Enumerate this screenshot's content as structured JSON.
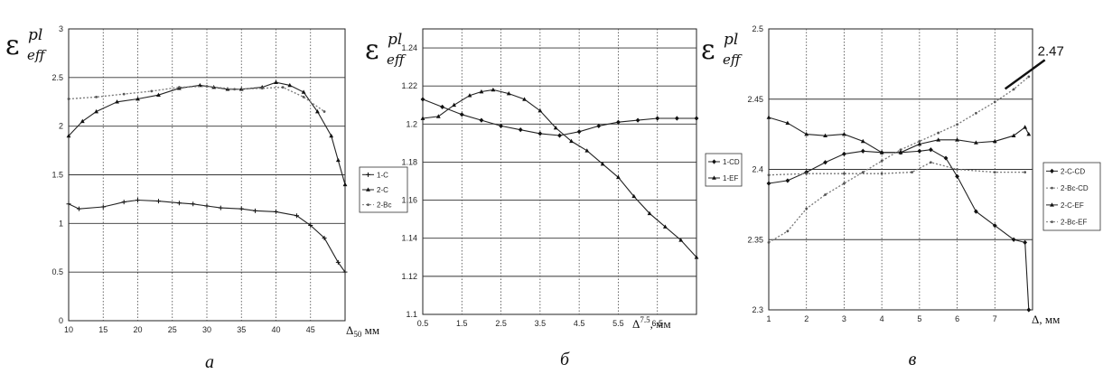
{
  "chart_data": [
    {
      "type": "line",
      "panel_label": "а",
      "ylabel": {
        "base": "ε",
        "sup": "pl",
        "sub": "eff"
      },
      "xlabel": "Δ",
      "xlabel_sub": "50",
      "xlabel_unit": "мм",
      "xlim": [
        10,
        50
      ],
      "ylim": [
        0,
        3
      ],
      "xticks": [
        10,
        15,
        20,
        25,
        30,
        35,
        40,
        45
      ],
      "yticks": [
        0,
        0.5,
        1,
        1.5,
        2,
        2.5,
        3
      ],
      "xtick_labels": [
        "10",
        "15",
        "20",
        "25",
        "30",
        "35",
        "40",
        "45"
      ],
      "ytick_labels": [
        "0",
        "0.5",
        "1",
        "1.5",
        "2",
        "2.5",
        "3"
      ],
      "legend": [
        "1-C",
        "2-C",
        "2-Bc"
      ],
      "legend_position": "right",
      "series": [
        {
          "name": "1-C",
          "marker": "plus",
          "dashed": false,
          "x": [
            10,
            11.5,
            15,
            18,
            20,
            23,
            26,
            28,
            30,
            32,
            35,
            37,
            40,
            43,
            45,
            47,
            49,
            50
          ],
          "y": [
            1.2,
            1.15,
            1.17,
            1.22,
            1.24,
            1.23,
            1.21,
            1.2,
            1.18,
            1.16,
            1.15,
            1.13,
            1.12,
            1.08,
            0.98,
            0.85,
            0.6,
            0.5
          ]
        },
        {
          "name": "2-C",
          "marker": "triangle",
          "dashed": false,
          "x": [
            10,
            12,
            14,
            17,
            20,
            23,
            26,
            29,
            31,
            33,
            35,
            38,
            40,
            42,
            44,
            46,
            48,
            49,
            50
          ],
          "y": [
            1.9,
            2.05,
            2.15,
            2.25,
            2.28,
            2.32,
            2.39,
            2.42,
            2.4,
            2.38,
            2.38,
            2.4,
            2.45,
            2.42,
            2.35,
            2.15,
            1.9,
            1.65,
            1.4
          ]
        },
        {
          "name": "2-Bc",
          "marker": "dot",
          "dashed": true,
          "x": [
            10,
            14,
            18,
            22,
            26,
            30,
            34,
            38,
            41,
            44,
            47
          ],
          "y": [
            2.28,
            2.3,
            2.33,
            2.36,
            2.4,
            2.41,
            2.38,
            2.39,
            2.4,
            2.3,
            2.15
          ]
        }
      ]
    },
    {
      "type": "line",
      "panel_label": "б",
      "ylabel": {
        "base": "ε",
        "sup": "pl",
        "sub": "eff"
      },
      "xlabel": "Δ",
      "xlabel_sup": "7.5",
      "xlabel_unit": ", мм",
      "xlim": [
        0.5,
        7.5
      ],
      "ylim": [
        1.1,
        1.25
      ],
      "xticks": [
        0.5,
        1.5,
        2.5,
        3.5,
        4.5,
        5.5,
        6.5
      ],
      "yticks": [
        1.1,
        1.12,
        1.14,
        1.16,
        1.18,
        1.2,
        1.22,
        1.24
      ],
      "xtick_labels": [
        "0.5",
        "1.5",
        "2.5",
        "3.5",
        "4.5",
        "5.5",
        "6.5"
      ],
      "ytick_labels": [
        "1.1",
        "1.12",
        "1.14",
        "1.16",
        "1.18",
        "1.2",
        "1.22",
        "1.24"
      ],
      "legend": [
        "1-CD",
        "1-EF"
      ],
      "legend_position": "right",
      "series": [
        {
          "name": "1-CD",
          "marker": "diamond",
          "dashed": false,
          "x": [
            0.5,
            1.0,
            1.5,
            2.0,
            2.5,
            3.0,
            3.5,
            4.0,
            4.5,
            5.0,
            5.5,
            6.0,
            6.5,
            7.0,
            7.5
          ],
          "y": [
            1.213,
            1.209,
            1.205,
            1.202,
            1.199,
            1.197,
            1.195,
            1.194,
            1.196,
            1.199,
            1.201,
            1.202,
            1.203,
            1.203,
            1.203
          ]
        },
        {
          "name": "1-EF",
          "marker": "triangle",
          "dashed": false,
          "x": [
            0.5,
            0.9,
            1.3,
            1.7,
            2.0,
            2.3,
            2.7,
            3.1,
            3.5,
            3.9,
            4.3,
            4.7,
            5.1,
            5.5,
            5.9,
            6.3,
            6.7,
            7.1,
            7.5
          ],
          "y": [
            1.203,
            1.204,
            1.21,
            1.215,
            1.217,
            1.218,
            1.216,
            1.213,
            1.207,
            1.198,
            1.191,
            1.186,
            1.179,
            1.172,
            1.162,
            1.153,
            1.146,
            1.139,
            1.13
          ]
        }
      ]
    },
    {
      "type": "line",
      "panel_label": "в",
      "ylabel": {
        "base": "ε",
        "sup": "pl",
        "sub": "eff"
      },
      "xlabel": "Δ",
      "xlabel_unit": ", мм",
      "xlim": [
        1,
        8
      ],
      "ylim": [
        2.3,
        2.5
      ],
      "xticks": [
        1,
        2,
        3,
        4,
        5,
        6,
        7
      ],
      "yticks": [
        2.3,
        2.35,
        2.4,
        2.45,
        2.5
      ],
      "xtick_labels": [
        "1",
        "2",
        "3",
        "4",
        "5",
        "6",
        "7"
      ],
      "ytick_labels": [
        "2.3",
        "2.35",
        "2.4",
        "2.45",
        "2.5"
      ],
      "legend": [
        "2-C-CD",
        "2-Bc-CD",
        "2-C-EF",
        "2-Bc-EF"
      ],
      "legend_position": "right",
      "annotation": {
        "text": "2.47",
        "x": 7.8,
        "y": 2.465
      },
      "series": [
        {
          "name": "2-C-CD",
          "marker": "diamond",
          "dashed": false,
          "x": [
            1,
            1.5,
            2,
            2.5,
            3,
            3.5,
            4,
            4.5,
            5,
            5.3,
            5.7,
            6,
            6.5,
            7,
            7.5,
            7.8,
            7.9
          ],
          "y": [
            2.39,
            2.392,
            2.398,
            2.405,
            2.411,
            2.413,
            2.412,
            2.412,
            2.413,
            2.414,
            2.408,
            2.395,
            2.37,
            2.36,
            2.35,
            2.348,
            2.3
          ]
        },
        {
          "name": "2-Bc-CD",
          "marker": "dot",
          "dashed": true,
          "x": [
            1,
            2,
            3,
            4,
            4.8,
            5.3,
            6,
            7,
            7.8
          ],
          "y": [
            2.396,
            2.397,
            2.397,
            2.397,
            2.398,
            2.405,
            2.4,
            2.398,
            2.398
          ]
        },
        {
          "name": "2-C-EF",
          "marker": "triangle",
          "dashed": false,
          "x": [
            1,
            1.5,
            2,
            2.5,
            3,
            3.5,
            4,
            4.5,
            5,
            5.5,
            6,
            6.5,
            7,
            7.5,
            7.8,
            7.9
          ],
          "y": [
            2.437,
            2.433,
            2.425,
            2.424,
            2.425,
            2.42,
            2.412,
            2.412,
            2.418,
            2.421,
            2.421,
            2.419,
            2.42,
            2.424,
            2.43,
            2.425
          ]
        },
        {
          "name": "2-Bc-EF",
          "marker": "dot",
          "dashed": true,
          "x": [
            1,
            1.5,
            2,
            2.5,
            3,
            3.5,
            4,
            4.5,
            5,
            5.5,
            6,
            6.5,
            7,
            7.5,
            7.9
          ],
          "y": [
            2.348,
            2.356,
            2.372,
            2.382,
            2.39,
            2.398,
            2.406,
            2.414,
            2.42,
            2.426,
            2.432,
            2.44,
            2.448,
            2.457,
            2.466
          ]
        }
      ]
    }
  ]
}
